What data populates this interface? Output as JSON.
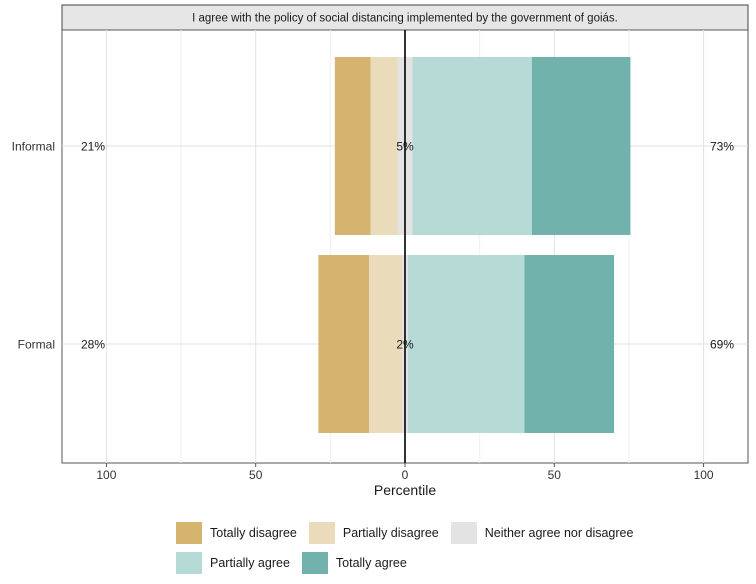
{
  "chart_data": {
    "type": "bar",
    "orientation": "horizontal",
    "stacked": "diverging",
    "title": "I agree with the policy of social distancing implemented by the government of goiás.",
    "xlabel": "Percentile",
    "ylabel": "",
    "xlim": [
      -100,
      100
    ],
    "xticks": [
      -100,
      -50,
      0,
      50,
      100
    ],
    "xtick_labels": [
      "100",
      "50",
      "0",
      "50",
      "100"
    ],
    "grid": true,
    "legend_position": "bottom",
    "categories": [
      "Informal",
      "Formal"
    ],
    "series": [
      {
        "name": "Totally disagree",
        "color": "#D4B46F",
        "values": [
          12,
          17
        ]
      },
      {
        "name": "Partially disagree",
        "color": "#EADCBB",
        "values": [
          9,
          11
        ]
      },
      {
        "name": "Neither agree nor disagree",
        "color": "#E3E3E3",
        "values": [
          5,
          2
        ]
      },
      {
        "name": "Partially agree",
        "color": "#B6DAD6",
        "values": [
          40,
          39
        ]
      },
      {
        "name": "Totally agree",
        "color": "#71B2AD",
        "values": [
          33,
          30
        ]
      }
    ],
    "annotations": [
      {
        "category": "Informal",
        "left": "21%",
        "center": "5%",
        "right": "73%"
      },
      {
        "category": "Formal",
        "left": "28%",
        "center": "2%",
        "right": "69%"
      }
    ]
  }
}
